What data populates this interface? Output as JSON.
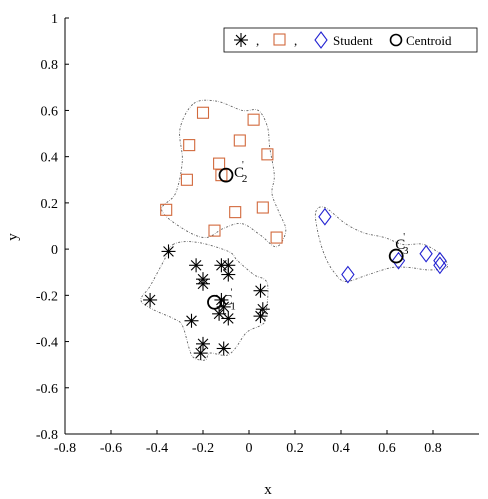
{
  "chart_data": {
    "type": "scatter",
    "xlabel": "x",
    "ylabel": "y",
    "xlim": [
      -0.8,
      1
    ],
    "ylim": [
      -0.8,
      1
    ],
    "x_ticks": [
      -0.8,
      -0.6,
      -0.4,
      -0.2,
      0,
      0.2,
      0.4,
      0.6,
      0.8
    ],
    "x_tick_labels": [
      "-0.8",
      "-0.6",
      "-0.4",
      "-0.2",
      "0",
      "0.2",
      "0.4",
      "0.6",
      "0.8"
    ],
    "y_ticks": [
      -0.8,
      -0.6,
      -0.4,
      -0.2,
      0,
      0.2,
      0.4,
      0.6,
      0.8,
      1
    ],
    "y_tick_labels": [
      "-0.8",
      "-0.6",
      "-0.4",
      "-0.2",
      "0",
      "0.2",
      "0.4",
      "0.6",
      "0.8",
      "1"
    ],
    "grid": false,
    "legend_position": "top-right",
    "legend": {
      "sep1": ",",
      "sep2": ",",
      "student_label": "Student",
      "centroid_label": "Centroid"
    },
    "colors": {
      "asterisk": "#000000",
      "square": "#d2693c",
      "diamond": "#2323d2",
      "centroid": "#000000",
      "boundary": "#606060"
    },
    "series": [
      {
        "marker": "asterisk",
        "points": [
          [
            -0.35,
            -0.01
          ],
          [
            -0.43,
            -0.22
          ],
          [
            -0.23,
            -0.07
          ],
          [
            -0.2,
            -0.13
          ],
          [
            -0.2,
            -0.15
          ],
          [
            -0.12,
            -0.07
          ],
          [
            -0.09,
            -0.07
          ],
          [
            -0.09,
            -0.11
          ],
          [
            -0.12,
            -0.22
          ],
          [
            -0.13,
            -0.28
          ],
          [
            -0.11,
            -0.25
          ],
          [
            -0.25,
            -0.31
          ],
          [
            -0.09,
            -0.3
          ],
          [
            -0.2,
            -0.41
          ],
          [
            -0.21,
            -0.45
          ],
          [
            -0.11,
            -0.43
          ],
          [
            0.05,
            -0.18
          ],
          [
            0.06,
            -0.26
          ],
          [
            0.05,
            -0.29
          ]
        ]
      },
      {
        "marker": "square",
        "points": [
          [
            -0.2,
            0.59
          ],
          [
            -0.26,
            0.45
          ],
          [
            -0.04,
            0.47
          ],
          [
            0.02,
            0.56
          ],
          [
            0.08,
            0.41
          ],
          [
            -0.13,
            0.37
          ],
          [
            -0.27,
            0.3
          ],
          [
            -0.12,
            0.32
          ],
          [
            -0.36,
            0.17
          ],
          [
            -0.06,
            0.16
          ],
          [
            0.06,
            0.18
          ],
          [
            -0.15,
            0.08
          ],
          [
            0.12,
            0.05
          ]
        ]
      },
      {
        "name": "Student",
        "marker": "diamond",
        "points": [
          [
            0.33,
            0.14
          ],
          [
            0.43,
            -0.11
          ],
          [
            0.65,
            -0.05
          ],
          [
            0.77,
            -0.02
          ],
          [
            0.83,
            -0.05
          ],
          [
            0.83,
            -0.07
          ]
        ]
      }
    ],
    "centroids": [
      {
        "point": [
          -0.15,
          -0.23
        ],
        "base": "C",
        "sub": "1",
        "prime": "'"
      },
      {
        "point": [
          -0.1,
          0.32
        ],
        "base": "C",
        "sub": "2",
        "prime": "'"
      },
      {
        "point": [
          0.64,
          -0.03
        ],
        "base": "C",
        "sub": "3",
        "prime": "'"
      }
    ],
    "boundaries": [
      [
        [
          -0.33,
          0.02
        ],
        [
          -0.23,
          0.03
        ],
        [
          -0.09,
          -0.01
        ],
        [
          -0.05,
          -0.05
        ],
        [
          0.02,
          -0.11
        ],
        [
          0.08,
          -0.15
        ],
        [
          0.07,
          -0.3
        ],
        [
          0.05,
          -0.33
        ],
        [
          -0.01,
          -0.36
        ],
        [
          -0.06,
          -0.43
        ],
        [
          -0.1,
          -0.46
        ],
        [
          -0.17,
          -0.45
        ],
        [
          -0.19,
          -0.48
        ],
        [
          -0.24,
          -0.47
        ],
        [
          -0.26,
          -0.43
        ],
        [
          -0.29,
          -0.33
        ],
        [
          -0.33,
          -0.3
        ],
        [
          -0.42,
          -0.26
        ],
        [
          -0.47,
          -0.22
        ],
        [
          -0.43,
          -0.16
        ],
        [
          -0.37,
          -0.05
        ]
      ],
      [
        [
          -0.24,
          0.63
        ],
        [
          -0.14,
          0.64
        ],
        [
          -0.03,
          0.6
        ],
        [
          0.04,
          0.6
        ],
        [
          0.08,
          0.53
        ],
        [
          0.09,
          0.44
        ],
        [
          0.11,
          0.32
        ],
        [
          0.1,
          0.24
        ],
        [
          0.13,
          0.16
        ],
        [
          0.16,
          0.08
        ],
        [
          0.12,
          0.01
        ],
        [
          0.05,
          0.06
        ],
        [
          -0.03,
          0.11
        ],
        [
          -0.11,
          0.09
        ],
        [
          -0.19,
          0.05
        ],
        [
          -0.29,
          0.09
        ],
        [
          -0.38,
          0.17
        ],
        [
          -0.32,
          0.24
        ],
        [
          -0.29,
          0.38
        ],
        [
          -0.3,
          0.52
        ]
      ],
      [
        [
          0.29,
          0.16
        ],
        [
          0.33,
          0.18
        ],
        [
          0.42,
          0.11
        ],
        [
          0.5,
          0.07
        ],
        [
          0.59,
          0.05
        ],
        [
          0.67,
          0.02
        ],
        [
          0.76,
          0.02
        ],
        [
          0.84,
          -0.03
        ],
        [
          0.86,
          -0.08
        ],
        [
          0.78,
          -0.09
        ],
        [
          0.7,
          -0.08
        ],
        [
          0.62,
          -0.08
        ],
        [
          0.52,
          -0.11
        ],
        [
          0.42,
          -0.14
        ],
        [
          0.37,
          -0.1
        ],
        [
          0.33,
          -0.03
        ],
        [
          0.3,
          0.07
        ]
      ]
    ]
  }
}
